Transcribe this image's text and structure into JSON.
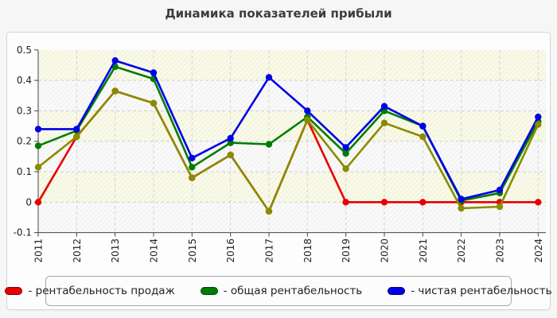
{
  "title": "Динамика показателей прибыли",
  "chart_data": {
    "type": "line",
    "x": [
      "2011",
      "2012",
      "2013",
      "2014",
      "2015",
      "2016",
      "2017",
      "2018",
      "2019",
      "2020",
      "2021",
      "2022",
      "2023",
      "2024"
    ],
    "ylim": [
      -0.1,
      0.5
    ],
    "yticks": [
      0.5,
      0.4,
      0.3,
      0.2,
      0.1,
      0,
      -0.1
    ],
    "grid": true,
    "legend_position": "bottom",
    "plot_band_colors": [
      "#fafae8",
      "#fafafa"
    ],
    "gridline_color": "#cfcfcf",
    "axis_color": "#444444",
    "series": [
      {
        "name": "рентабельность продаж",
        "color": "#e80000",
        "in_legend": true,
        "values": [
          0,
          0.215,
          0.365,
          0.325,
          0.08,
          0.155,
          -0.03,
          0.27,
          0,
          0,
          0,
          0,
          0,
          0
        ]
      },
      {
        "name": "общая рентабельность",
        "color": "#007d00",
        "in_legend": true,
        "values": [
          0.185,
          0.235,
          0.445,
          0.405,
          0.115,
          0.195,
          0.19,
          0.28,
          0.16,
          0.3,
          0.25,
          0.005,
          0.03,
          0.265
        ]
      },
      {
        "name": "чистая рентабельность",
        "color": "#0000e8",
        "in_legend": true,
        "values": [
          0.24,
          0.24,
          0.465,
          0.425,
          0.145,
          0.21,
          0.41,
          0.3,
          0.18,
          0.315,
          0.25,
          0.01,
          0.04,
          0.28
        ]
      },
      {
        "name": "",
        "color": "#8b8b00",
        "in_legend": false,
        "values": [
          0.115,
          0.215,
          0.365,
          0.325,
          0.08,
          0.155,
          -0.03,
          0.27,
          0.11,
          0.26,
          0.215,
          -0.02,
          -0.015,
          0.255
        ]
      }
    ]
  },
  "legend": {
    "items": [
      {
        "label": "- рентабельность продаж",
        "color": "#e80000"
      },
      {
        "label": "- общая рентабельность",
        "color": "#007d00"
      },
      {
        "label": "- чистая рентабельность",
        "color": "#0000e8"
      }
    ]
  }
}
